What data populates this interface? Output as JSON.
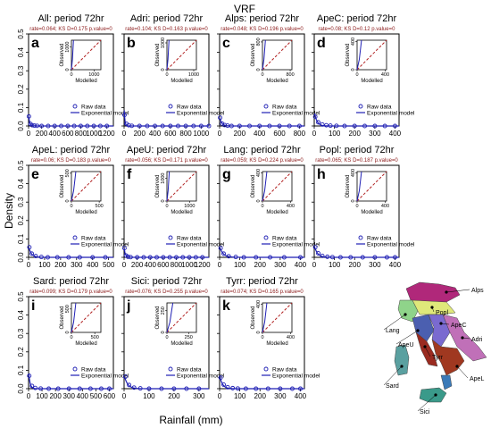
{
  "figure": {
    "title": "VRF",
    "xlabel": "Rainfall (mm)",
    "ylabel": "Density"
  },
  "colors": {
    "raw_data": "#1f1fb4",
    "model": "#1f1fb4",
    "rate_text": "#8b1a1a",
    "diagonal": "#b22222"
  },
  "legend": {
    "raw": "Raw data",
    "model": "Exponential model"
  },
  "inset_labels": {
    "x": "Modelled",
    "y": "Observed"
  },
  "map": {
    "regions": [
      "Alps",
      "Popl",
      "ApeC",
      "Adri",
      "Lang",
      "ApeU",
      "Tyrr",
      "Sard",
      "ApeL",
      "Sici"
    ]
  },
  "chart_data": [
    {
      "letter": "a",
      "title": "All: period 72hr",
      "stats": "rate=0.064; KS D=0.175 p.value=0",
      "type": "scatter+line",
      "xticks": [
        0,
        200,
        400,
        600,
        800,
        1000,
        1200
      ],
      "xlim": [
        0,
        1300
      ],
      "yticks": [
        0.0,
        0.1,
        0.2,
        0.3,
        0.4,
        0.5
      ],
      "ylim": [
        0,
        0.5
      ],
      "show_y": true,
      "inset": {
        "ticks": [
          0,
          1000
        ],
        "lim": 1300,
        "steep": 0.07
      },
      "raw": [
        [
          5,
          0.052
        ],
        [
          30,
          0.011
        ],
        [
          55,
          0.004
        ],
        [
          90,
          0.002
        ],
        [
          130,
          0.001
        ],
        [
          200,
          0.0
        ],
        [
          300,
          0.0
        ],
        [
          400,
          0.0
        ],
        [
          500,
          0.0
        ],
        [
          600,
          0.0
        ],
        [
          700,
          0.0
        ],
        [
          800,
          0.0
        ],
        [
          900,
          0.0
        ],
        [
          1000,
          0.0
        ],
        [
          1100,
          0.0
        ],
        [
          1200,
          0.0
        ]
      ],
      "rate": 0.064
    },
    {
      "letter": "b",
      "title": "Adri: period 72hr",
      "stats": "rate=0.104; KS D=0.163 p.value=0",
      "type": "scatter+line",
      "xticks": [
        0,
        200,
        400,
        600,
        800,
        1000
      ],
      "xlim": [
        0,
        1100
      ],
      "yticks": [
        0.0,
        0.1,
        0.2,
        0.3,
        0.4,
        0.5
      ],
      "ylim": [
        0,
        0.5
      ],
      "show_y": false,
      "inset": {
        "ticks": [
          0,
          1000
        ],
        "lim": 1100,
        "steep": 0.07
      },
      "raw": [
        [
          5,
          0.06
        ],
        [
          30,
          0.012
        ],
        [
          60,
          0.004
        ],
        [
          100,
          0.001
        ],
        [
          200,
          0.0
        ],
        [
          300,
          0.0
        ],
        [
          400,
          0.0
        ],
        [
          500,
          0.0
        ],
        [
          600,
          0.0
        ],
        [
          700,
          0.0
        ],
        [
          800,
          0.0
        ],
        [
          900,
          0.0
        ],
        [
          1000,
          0.0
        ],
        [
          1100,
          0.0
        ]
      ],
      "rate": 0.104
    },
    {
      "letter": "c",
      "title": "Alps: period 72hr",
      "stats": "rate=0.048; KS D=0.196 p.value=0",
      "type": "scatter+line",
      "xticks": [
        0,
        200,
        400,
        600,
        800
      ],
      "xlim": [
        0,
        850
      ],
      "yticks": [
        0.0,
        0.1,
        0.2,
        0.3,
        0.4,
        0.5
      ],
      "ylim": [
        0,
        0.5
      ],
      "show_y": false,
      "inset": {
        "ticks": [
          0,
          800
        ],
        "lim": 850,
        "steep": 0.1
      },
      "raw": [
        [
          5,
          0.045
        ],
        [
          25,
          0.013
        ],
        [
          50,
          0.005
        ],
        [
          80,
          0.002
        ],
        [
          120,
          0.0
        ],
        [
          200,
          0.0
        ],
        [
          300,
          0.0
        ],
        [
          400,
          0.0
        ],
        [
          500,
          0.0
        ],
        [
          600,
          0.0
        ],
        [
          700,
          0.0
        ],
        [
          800,
          0.0
        ]
      ],
      "rate": 0.048
    },
    {
      "letter": "d",
      "title": "ApeC: period 72hr",
      "stats": "rate=0.08; KS D=0.12 p.value=0",
      "type": "scatter+line",
      "xticks": [
        0,
        100,
        200,
        300,
        400
      ],
      "xlim": [
        0,
        420
      ],
      "yticks": [
        0.0,
        0.1,
        0.2,
        0.3,
        0.4,
        0.5
      ],
      "ylim": [
        0,
        0.5
      ],
      "show_y": false,
      "inset": {
        "ticks": [
          0,
          400
        ],
        "lim": 420,
        "steep": 0.15
      },
      "raw": [
        [
          5,
          0.05
        ],
        [
          20,
          0.02
        ],
        [
          40,
          0.008
        ],
        [
          60,
          0.004
        ],
        [
          80,
          0.002
        ],
        [
          110,
          0.001
        ],
        [
          150,
          0.0
        ],
        [
          200,
          0.0
        ],
        [
          250,
          0.0
        ],
        [
          300,
          0.0
        ],
        [
          350,
          0.0
        ],
        [
          400,
          0.0
        ]
      ],
      "rate": 0.08
    },
    {
      "letter": "e",
      "title": "ApeL: period 72hr",
      "stats": "rate=0.06; KS D=0.183 p.value=0",
      "type": "scatter+line",
      "xticks": [
        0,
        100,
        200,
        300,
        400,
        500
      ],
      "xlim": [
        0,
        530
      ],
      "yticks": [
        0.0,
        0.1,
        0.2,
        0.3,
        0.4,
        0.5
      ],
      "ylim": [
        0,
        0.5
      ],
      "show_y": true,
      "inset": {
        "ticks": [
          0,
          500
        ],
        "lim": 530,
        "steep": 0.15
      },
      "raw": [
        [
          5,
          0.055
        ],
        [
          20,
          0.02
        ],
        [
          45,
          0.007
        ],
        [
          80,
          0.002
        ],
        [
          120,
          0.0
        ],
        [
          180,
          0.0
        ],
        [
          250,
          0.0
        ],
        [
          320,
          0.0
        ],
        [
          400,
          0.0
        ],
        [
          480,
          0.0
        ]
      ],
      "rate": 0.06
    },
    {
      "letter": "f",
      "title": "ApeU: period 72hr",
      "stats": "rate=0.056; KS D=0.171 p.value=0",
      "type": "scatter+line",
      "xticks": [
        0,
        200,
        400,
        600,
        800,
        1000,
        1200
      ],
      "xlim": [
        0,
        1300
      ],
      "yticks": [
        0.0,
        0.1,
        0.2,
        0.3,
        0.4,
        0.5
      ],
      "ylim": [
        0,
        0.5
      ],
      "show_y": false,
      "inset": {
        "ticks": [
          0,
          1000
        ],
        "lim": 1300,
        "steep": 0.08
      },
      "raw": [
        [
          5,
          0.05
        ],
        [
          30,
          0.01
        ],
        [
          60,
          0.003
        ],
        [
          100,
          0.001
        ],
        [
          200,
          0.0
        ],
        [
          300,
          0.0
        ],
        [
          400,
          0.0
        ],
        [
          500,
          0.0
        ],
        [
          600,
          0.0
        ],
        [
          700,
          0.0
        ],
        [
          800,
          0.0
        ],
        [
          900,
          0.0
        ],
        [
          1000,
          0.0
        ],
        [
          1100,
          0.0
        ],
        [
          1200,
          0.0
        ]
      ],
      "rate": 0.056
    },
    {
      "letter": "g",
      "title": "Lang: period 72hr",
      "stats": "rate=0.059; KS D=0.224 p.value=0",
      "type": "scatter+line",
      "xticks": [
        0,
        100,
        200,
        300,
        400
      ],
      "xlim": [
        0,
        420
      ],
      "yticks": [
        0.0,
        0.1,
        0.2,
        0.3,
        0.4,
        0.5
      ],
      "ylim": [
        0,
        0.5
      ],
      "show_y": false,
      "inset": {
        "ticks": [
          0,
          400
        ],
        "lim": 420,
        "steep": 0.15
      },
      "raw": [
        [
          5,
          0.05
        ],
        [
          20,
          0.02
        ],
        [
          45,
          0.006
        ],
        [
          80,
          0.002
        ],
        [
          120,
          0.0
        ],
        [
          180,
          0.0
        ],
        [
          250,
          0.0
        ],
        [
          320,
          0.0
        ],
        [
          400,
          0.0
        ]
      ],
      "rate": 0.059
    },
    {
      "letter": "h",
      "title": "Popl: period 72hr",
      "stats": "rate=0.065; KS D=0.187 p.value=0",
      "type": "scatter+line",
      "xticks": [
        0,
        100,
        200,
        300,
        400
      ],
      "xlim": [
        0,
        420
      ],
      "yticks": [
        0.0,
        0.1,
        0.2,
        0.3,
        0.4,
        0.5
      ],
      "ylim": [
        0,
        0.5
      ],
      "show_y": false,
      "inset": {
        "ticks": [
          0,
          400
        ],
        "lim": 420,
        "steep": 0.15
      },
      "raw": [
        [
          5,
          0.055
        ],
        [
          20,
          0.022
        ],
        [
          40,
          0.008
        ],
        [
          65,
          0.003
        ],
        [
          90,
          0.001
        ],
        [
          130,
          0.0
        ],
        [
          180,
          0.0
        ],
        [
          240,
          0.0
        ],
        [
          300,
          0.0
        ],
        [
          360,
          0.0
        ],
        [
          400,
          0.0
        ]
      ],
      "rate": 0.065
    },
    {
      "letter": "i",
      "title": "Sard: period 72hr",
      "stats": "rate=0.099; KS D=0.179 p.value=0",
      "type": "scatter+line",
      "xticks": [
        0,
        100,
        200,
        300,
        400,
        500,
        600
      ],
      "xlim": [
        0,
        630
      ],
      "yticks": [
        0.0,
        0.1,
        0.2,
        0.3,
        0.4,
        0.5
      ],
      "ylim": [
        0,
        0.5
      ],
      "show_y": true,
      "inset": {
        "ticks": [
          0,
          500
        ],
        "lim": 630,
        "steep": 0.15
      },
      "raw": [
        [
          5,
          0.07
        ],
        [
          25,
          0.015
        ],
        [
          50,
          0.004
        ],
        [
          90,
          0.001
        ],
        [
          150,
          0.0
        ],
        [
          220,
          0.0
        ],
        [
          300,
          0.0
        ],
        [
          380,
          0.0
        ],
        [
          460,
          0.0
        ],
        [
          540,
          0.0
        ],
        [
          600,
          0.0
        ]
      ],
      "rate": 0.099
    },
    {
      "letter": "j",
      "title": "Sici: period 72hr",
      "stats": "rate=0.076; KS D=0.255 p.value=0",
      "type": "scatter+line",
      "xticks": [
        0,
        100,
        200,
        300
      ],
      "xlim": [
        0,
        340
      ],
      "yticks": [
        0.0,
        0.1,
        0.2,
        0.3,
        0.4,
        0.5
      ],
      "ylim": [
        0,
        0.5
      ],
      "show_y": false,
      "inset": {
        "ticks": [
          0,
          250
        ],
        "lim": 340,
        "steep": 0.2
      },
      "raw": [
        [
          5,
          0.065
        ],
        [
          20,
          0.02
        ],
        [
          40,
          0.006
        ],
        [
          65,
          0.002
        ],
        [
          100,
          0.0
        ],
        [
          150,
          0.0
        ],
        [
          200,
          0.0
        ],
        [
          250,
          0.0
        ],
        [
          300,
          0.0
        ]
      ],
      "rate": 0.076
    },
    {
      "letter": "k",
      "title": "Tyrr: period 72hr",
      "stats": "rate=0.074; KS D=0.165 p.value=0",
      "type": "scatter+line",
      "xticks": [
        0,
        100,
        200,
        300,
        400
      ],
      "xlim": [
        0,
        420
      ],
      "yticks": [
        0.0,
        0.1,
        0.2,
        0.3,
        0.4,
        0.5
      ],
      "ylim": [
        0,
        0.5
      ],
      "show_y": false,
      "inset": {
        "ticks": [
          0,
          400
        ],
        "lim": 420,
        "steep": 0.15
      },
      "raw": [
        [
          5,
          0.06
        ],
        [
          20,
          0.022
        ],
        [
          40,
          0.008
        ],
        [
          65,
          0.003
        ],
        [
          90,
          0.001
        ],
        [
          130,
          0.0
        ],
        [
          180,
          0.0
        ],
        [
          240,
          0.0
        ],
        [
          300,
          0.0
        ],
        [
          360,
          0.0
        ],
        [
          400,
          0.0
        ]
      ],
      "rate": 0.074
    }
  ]
}
